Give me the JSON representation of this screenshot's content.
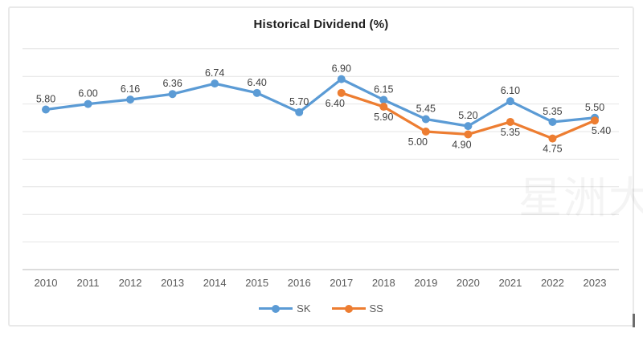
{
  "watermark": {
    "text": "星洲大"
  },
  "chart_data": {
    "type": "line",
    "title": "Historical Dividend (%)",
    "categories": [
      "2010",
      "2011",
      "2012",
      "2013",
      "2014",
      "2015",
      "2016",
      "2017",
      "2018",
      "2019",
      "2020",
      "2021",
      "2022",
      "2023"
    ],
    "series": [
      {
        "name": "SK",
        "color": "#5B9BD5",
        "values": [
          5.8,
          6.0,
          6.16,
          6.36,
          6.74,
          6.4,
          5.7,
          6.9,
          6.15,
          5.45,
          5.2,
          6.1,
          5.35,
          5.5
        ],
        "label_position": "above",
        "label_dx": [
          0,
          0,
          0,
          0,
          0,
          0,
          0,
          0,
          0,
          0,
          0,
          0,
          0,
          0
        ]
      },
      {
        "name": "SS",
        "color": "#ED7D31",
        "values": [
          null,
          null,
          null,
          null,
          null,
          null,
          null,
          6.4,
          5.9,
          5.0,
          4.9,
          5.35,
          4.75,
          5.4
        ],
        "label_position": "below",
        "label_dx": [
          0,
          0,
          0,
          0,
          0,
          0,
          0,
          -8,
          0,
          -10,
          -8,
          0,
          0,
          8
        ]
      }
    ],
    "xlabel": "",
    "ylabel": "",
    "ylim": [
      0,
      8
    ],
    "gridline_step": 1,
    "grid": true,
    "legend_position": "bottom",
    "data_label_format": "0.00"
  }
}
